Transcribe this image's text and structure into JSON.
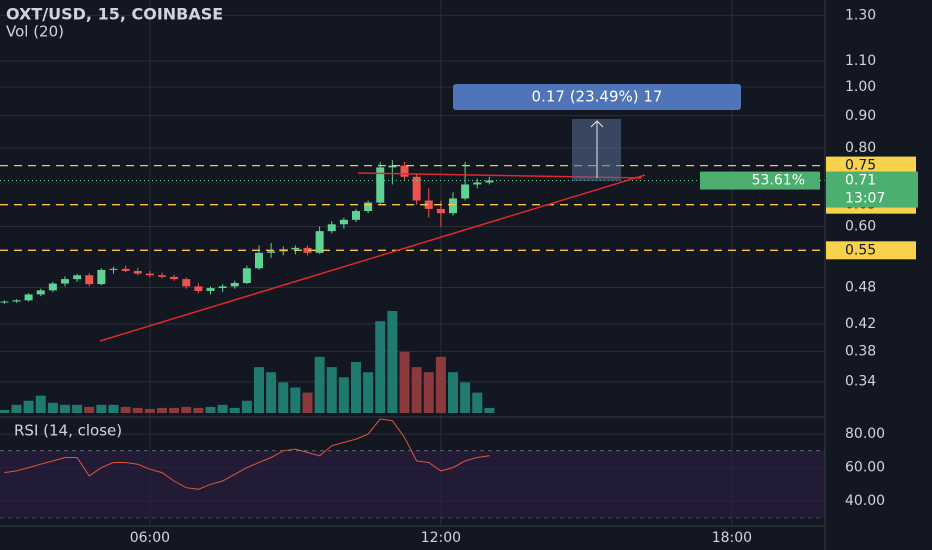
{
  "chart_data": {
    "type": "candlestick",
    "title": "OXT/USD, 15, COINBASE",
    "volume_title": "Vol (20)",
    "log_scale": true,
    "grid": true,
    "up_color": "#5fd393",
    "down_color": "#ef5350",
    "volume_up_color": "#1f7a70",
    "volume_down_color": "#8c3a3e",
    "x": [
      3,
      3.25,
      3.5,
      3.75,
      4,
      4.25,
      4.5,
      4.75,
      5,
      5.25,
      5.5,
      5.75,
      6,
      6.25,
      6.5,
      6.75,
      7,
      7.25,
      7.5,
      7.75,
      8,
      8.25,
      8.5,
      8.75,
      9,
      9.25,
      9.5,
      9.75,
      10,
      10.25,
      10.5,
      10.75,
      11,
      11.25,
      11.5,
      11.75,
      12,
      12.25,
      12.5,
      12.75,
      13
    ],
    "xlim": [
      2.91,
      19.92
    ],
    "xticks": [
      {
        "value": 6,
        "label": "06:00"
      },
      {
        "value": 12,
        "label": "12:00"
      },
      {
        "value": 18,
        "label": "18:00"
      }
    ],
    "open": [
      0.455,
      0.456,
      0.458,
      0.468,
      0.475,
      0.487,
      0.495,
      0.502,
      0.486,
      0.512,
      0.514,
      0.51,
      0.505,
      0.502,
      0.499,
      0.495,
      0.482,
      0.474,
      0.479,
      0.482,
      0.488,
      0.515,
      0.545,
      0.548,
      0.552,
      0.555,
      0.545,
      0.59,
      0.605,
      0.615,
      0.635,
      0.655,
      0.745,
      0.75,
      0.72,
      0.66,
      0.64,
      0.63,
      0.665,
      0.7,
      0.705
    ],
    "high": [
      0.458,
      0.46,
      0.47,
      0.478,
      0.49,
      0.5,
      0.505,
      0.506,
      0.515,
      0.518,
      0.52,
      0.516,
      0.51,
      0.507,
      0.503,
      0.498,
      0.488,
      0.482,
      0.486,
      0.492,
      0.52,
      0.56,
      0.565,
      0.558,
      0.56,
      0.56,
      0.6,
      0.612,
      0.62,
      0.64,
      0.66,
      0.76,
      0.765,
      0.76,
      0.73,
      0.69,
      0.66,
      0.68,
      0.76,
      0.715,
      0.72
    ],
    "low": [
      0.452,
      0.454,
      0.456,
      0.465,
      0.472,
      0.482,
      0.49,
      0.482,
      0.484,
      0.505,
      0.508,
      0.502,
      0.498,
      0.496,
      0.492,
      0.478,
      0.47,
      0.468,
      0.472,
      0.478,
      0.486,
      0.512,
      0.535,
      0.54,
      0.542,
      0.54,
      0.543,
      0.585,
      0.595,
      0.61,
      0.63,
      0.65,
      0.7,
      0.71,
      0.65,
      0.62,
      0.6,
      0.625,
      0.66,
      0.69,
      0.7
    ],
    "close": [
      0.456,
      0.458,
      0.468,
      0.475,
      0.487,
      0.495,
      0.502,
      0.486,
      0.512,
      0.514,
      0.51,
      0.505,
      0.502,
      0.499,
      0.495,
      0.482,
      0.474,
      0.479,
      0.482,
      0.488,
      0.515,
      0.545,
      0.548,
      0.552,
      0.555,
      0.545,
      0.59,
      0.605,
      0.615,
      0.635,
      0.655,
      0.745,
      0.75,
      0.72,
      0.66,
      0.64,
      0.63,
      0.665,
      0.7,
      0.705,
      0.71
    ],
    "volume": [
      3,
      8,
      12,
      17,
      10,
      8,
      8,
      6,
      8,
      8,
      6,
      5,
      4,
      5,
      5,
      6,
      5,
      6,
      8,
      5,
      12,
      45,
      40,
      30,
      25,
      20,
      55,
      45,
      35,
      50,
      40,
      90,
      100,
      60,
      45,
      40,
      55,
      40,
      30,
      20,
      5
    ],
    "ylim": [
      0.301,
      1.375
    ],
    "yticks": [
      {
        "value": 1.3,
        "label": "1.30"
      },
      {
        "value": 1.1,
        "label": "1.10"
      },
      {
        "value": 1,
        "label": "1.00"
      },
      {
        "value": 0.9,
        "label": "0.90"
      },
      {
        "value": 0.8,
        "label": "0.80"
      },
      {
        "value": 0.6,
        "label": "0.60"
      },
      0.48,
      0.42,
      0.38,
      0.34
    ],
    "levels": [
      0.75,
      0.65,
      0.55
    ],
    "last_price": 0.71,
    "change_label": "53.61%",
    "countdown": "13:07",
    "measure_label": "0.17 (23.49%) 17",
    "rsi": {
      "title": "RSI (14, close)",
      "values": [
        57,
        58,
        60,
        62,
        64,
        66,
        66,
        55,
        60,
        63,
        63,
        62,
        59,
        57,
        52,
        48,
        47,
        50,
        52,
        56,
        60,
        63,
        66,
        70,
        71,
        69,
        67,
        73,
        75,
        77,
        80,
        89,
        88,
        78,
        64,
        63,
        58,
        60,
        64,
        66,
        67
      ],
      "ylim": [
        25.7,
        89.6
      ],
      "yticks": [
        {
          "value": 80,
          "label": "80.00"
        },
        {
          "value": 60,
          "label": "60.00"
        },
        {
          "value": 40,
          "label": "40.00"
        }
      ],
      "bands": [
        70,
        30
      ],
      "color": "#e0553a"
    }
  }
}
